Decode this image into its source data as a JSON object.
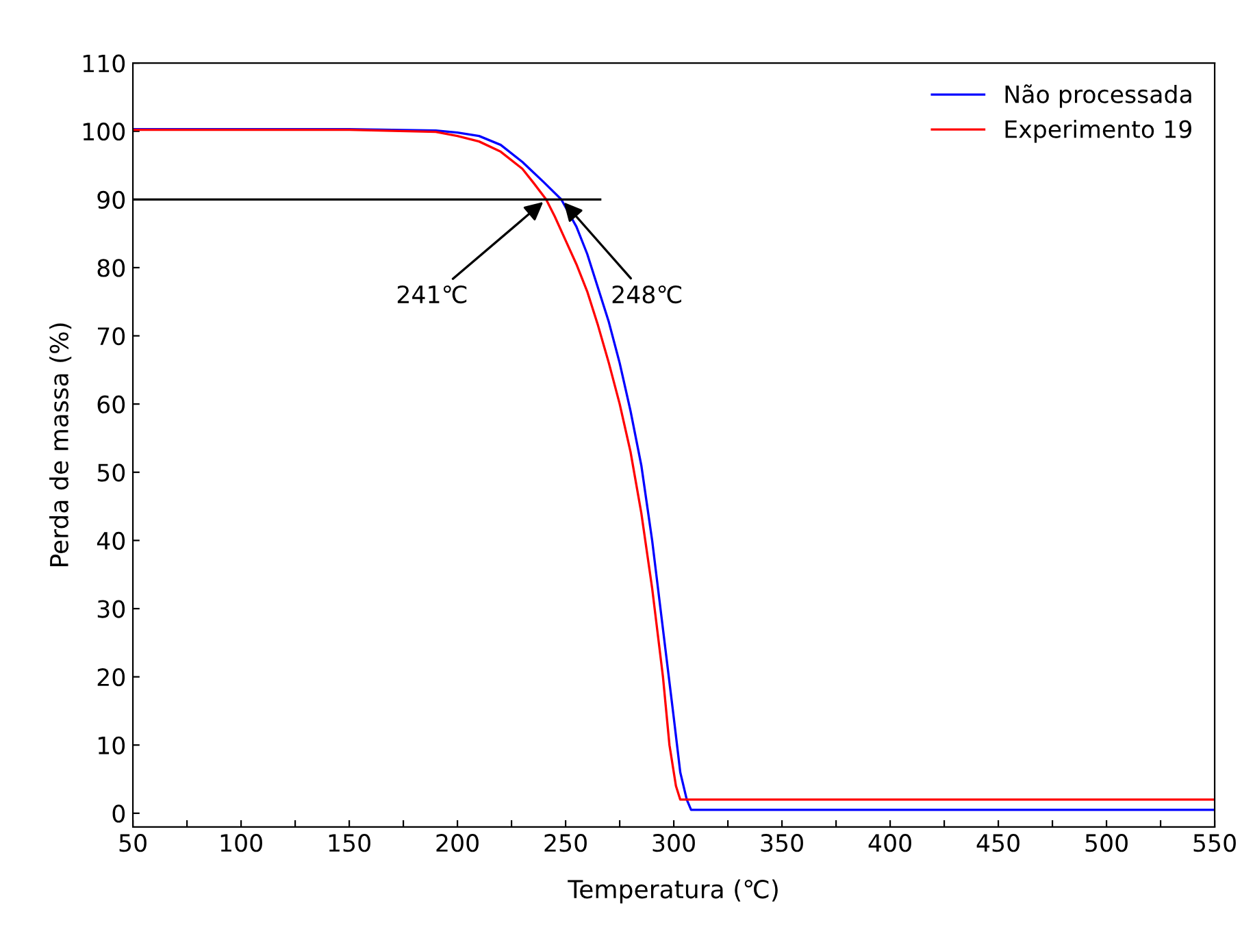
{
  "chart_data": {
    "type": "line",
    "xlabel": "Temperatura (℃)",
    "ylabel": "Perda de massa (%)",
    "xlim": [
      50,
      550
    ],
    "ylim": [
      -2,
      110
    ],
    "xticks": [
      50,
      {
        "value": 75,
        "label": null
      },
      100,
      {
        "value": 125,
        "label": null
      },
      150,
      {
        "value": 175,
        "label": null
      },
      200,
      {
        "value": 225,
        "label": null
      },
      250,
      {
        "value": 275,
        "label": null
      },
      300,
      {
        "value": 325,
        "label": null
      },
      350,
      {
        "value": 375,
        "label": null
      },
      400,
      {
        "value": 425,
        "label": null
      },
      450,
      {
        "value": 475,
        "label": null
      },
      500,
      {
        "value": 525,
        "label": null
      },
      550
    ],
    "yticks": [
      0,
      10,
      20,
      30,
      40,
      50,
      60,
      70,
      80,
      90,
      100,
      110
    ],
    "grid": false,
    "legend": "top right",
    "marker": "none",
    "line_style": "solid",
    "series": [
      {
        "name": "Não processada",
        "color": "#0000ff",
        "x": [
          50,
          100,
          150,
          190,
          200,
          210,
          220,
          230,
          240,
          248,
          255,
          260,
          265,
          270,
          275,
          280,
          285,
          290,
          295,
          300,
          303,
          306,
          308,
          550
        ],
        "values": [
          100.3,
          100.3,
          100.3,
          100.1,
          99.8,
          99.3,
          98,
          95.5,
          92.5,
          90,
          86,
          82,
          77,
          72,
          66,
          59,
          51,
          40,
          27,
          14,
          6,
          2,
          0.5,
          0.5
        ]
      },
      {
        "name": "Experimento 19",
        "color": "#ff0000",
        "x": [
          50,
          100,
          150,
          190,
          200,
          210,
          220,
          230,
          235,
          241,
          245,
          250,
          255,
          260,
          265,
          270,
          275,
          280,
          285,
          290,
          295,
          298,
          301,
          303,
          550
        ],
        "values": [
          100.2,
          100.2,
          100.2,
          99.9,
          99.3,
          98.5,
          97,
          94.5,
          92.5,
          90,
          87.5,
          84,
          80.5,
          76.5,
          71.5,
          66,
          60,
          53,
          44,
          33,
          20,
          10,
          4,
          2,
          2
        ]
      },
      {
        "color": "#000000",
        "x": [
          50,
          266
        ],
        "values": [
          90,
          90
        ]
      }
    ],
    "annotations": [
      {
        "text": "241℃",
        "x": 241,
        "y": 90
      },
      {
        "text": "248℃",
        "x": 248,
        "y": 90
      }
    ]
  }
}
